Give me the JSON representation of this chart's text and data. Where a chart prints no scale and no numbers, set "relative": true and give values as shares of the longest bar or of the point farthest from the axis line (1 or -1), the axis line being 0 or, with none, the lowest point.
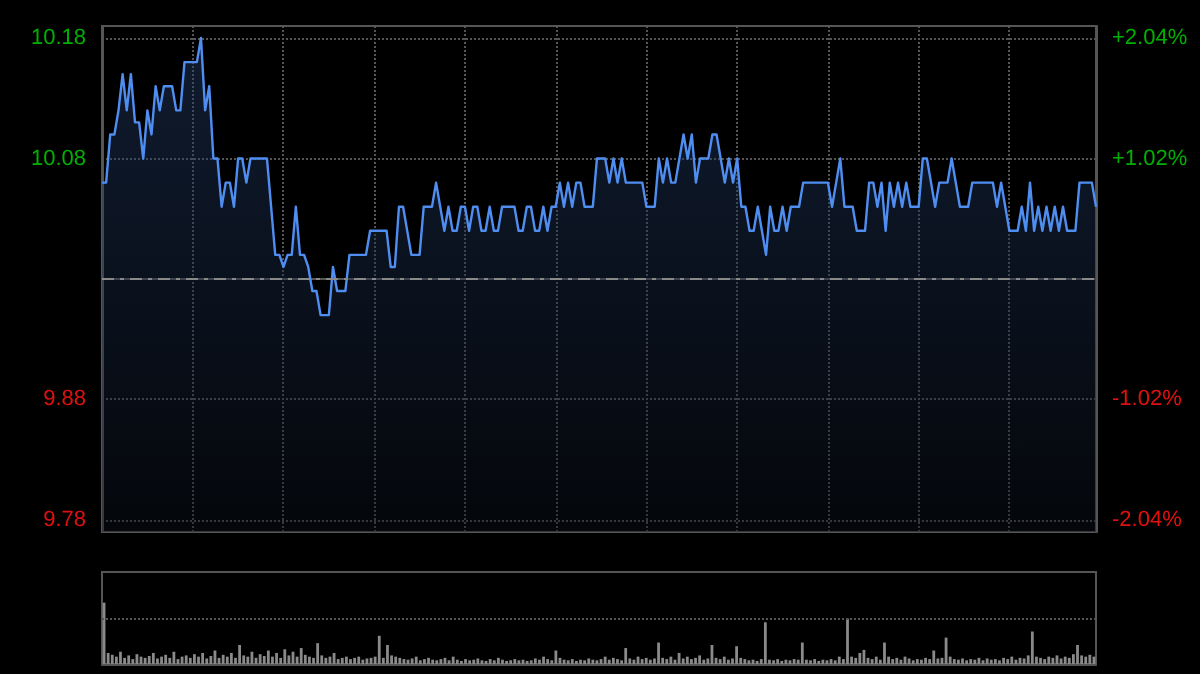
{
  "chart_data": [
    {
      "type": "area",
      "color": "#4f8ef0",
      "categories": [
        null,
        null,
        null,
        null,
        null,
        null,
        null,
        null,
        null,
        null,
        null,
        null,
        null,
        null,
        null,
        null,
        null,
        null,
        null,
        null,
        null,
        null,
        null,
        null,
        null,
        null,
        null,
        null,
        null,
        null,
        null,
        null,
        null,
        null,
        null,
        null,
        null,
        null,
        null,
        null,
        null,
        null,
        null,
        null,
        null,
        null,
        null,
        null,
        null,
        null,
        null,
        null,
        null,
        null,
        null,
        null,
        null,
        null,
        null,
        null,
        null,
        null,
        null,
        null,
        null,
        null,
        null,
        null,
        null,
        null,
        null,
        null,
        null,
        null,
        null,
        null,
        null,
        null,
        null,
        null,
        null,
        null,
        null,
        null,
        null,
        null,
        null,
        null,
        null,
        null,
        null,
        null,
        null,
        null,
        null,
        null,
        null,
        null,
        null,
        null,
        null,
        null,
        null,
        null,
        null,
        null,
        null,
        null,
        null,
        null,
        null,
        null,
        null,
        null,
        null,
        null,
        null,
        null,
        null,
        null,
        null,
        null,
        null,
        null,
        null,
        null,
        null,
        null,
        null,
        null,
        null,
        null,
        null,
        null,
        null,
        null,
        null,
        null,
        null,
        null,
        null,
        null,
        null,
        null,
        null,
        null,
        null,
        null,
        null,
        null,
        null,
        null,
        null,
        null,
        null,
        null,
        null,
        null,
        null,
        null,
        null,
        null,
        null,
        null,
        null,
        null,
        null,
        null,
        null,
        null,
        null,
        null,
        null,
        null,
        null,
        null,
        null,
        null,
        null,
        null,
        null,
        null,
        null,
        null,
        null,
        null,
        null,
        null,
        null,
        null,
        null,
        null,
        null,
        null,
        null,
        null,
        null,
        null,
        null,
        null,
        null,
        null,
        null,
        null,
        null,
        null,
        null,
        null,
        null,
        null,
        null,
        null,
        null,
        null,
        null,
        null,
        null,
        null,
        null,
        null,
        null,
        null,
        null,
        null,
        null,
        null,
        null,
        null,
        null,
        null,
        null,
        null,
        null,
        null,
        null,
        null,
        null,
        null,
        null,
        null,
        null,
        null
      ],
      "values": [
        10.06,
        10.06,
        10.1,
        10.1,
        10.12,
        10.15,
        10.12,
        10.15,
        10.11,
        10.11,
        10.08,
        10.12,
        10.1,
        10.14,
        10.12,
        10.14,
        10.14,
        10.14,
        10.12,
        10.12,
        10.16,
        10.16,
        10.16,
        10.16,
        10.18,
        10.12,
        10.14,
        10.08,
        10.08,
        10.04,
        10.06,
        10.06,
        10.04,
        10.08,
        10.08,
        10.06,
        10.08,
        10.08,
        10.08,
        10.08,
        10.08,
        10.04,
        10.0,
        10.0,
        9.99,
        10.0,
        10.0,
        10.04,
        10.0,
        10.0,
        9.99,
        9.97,
        9.97,
        9.95,
        9.95,
        9.95,
        9.99,
        9.97,
        9.97,
        9.97,
        10.0,
        10.0,
        10.0,
        10.0,
        10.0,
        10.02,
        10.02,
        10.02,
        10.02,
        10.02,
        9.99,
        9.99,
        10.04,
        10.04,
        10.02,
        10.0,
        10.0,
        10.0,
        10.04,
        10.04,
        10.04,
        10.06,
        10.04,
        10.02,
        10.04,
        10.02,
        10.02,
        10.04,
        10.04,
        10.02,
        10.04,
        10.04,
        10.02,
        10.02,
        10.04,
        10.02,
        10.02,
        10.04,
        10.04,
        10.04,
        10.04,
        10.02,
        10.02,
        10.04,
        10.04,
        10.02,
        10.02,
        10.04,
        10.02,
        10.04,
        10.04,
        10.06,
        10.04,
        10.06,
        10.04,
        10.06,
        10.06,
        10.04,
        10.04,
        10.04,
        10.08,
        10.08,
        10.08,
        10.06,
        10.08,
        10.06,
        10.08,
        10.06,
        10.06,
        10.06,
        10.06,
        10.06,
        10.04,
        10.04,
        10.04,
        10.08,
        10.06,
        10.08,
        10.06,
        10.06,
        10.08,
        10.1,
        10.08,
        10.1,
        10.06,
        10.08,
        10.08,
        10.08,
        10.1,
        10.1,
        10.08,
        10.06,
        10.08,
        10.06,
        10.08,
        10.04,
        10.04,
        10.02,
        10.02,
        10.04,
        10.02,
        10.0,
        10.04,
        10.02,
        10.02,
        10.04,
        10.02,
        10.04,
        10.04,
        10.04,
        10.06,
        10.06,
        10.06,
        10.06,
        10.06,
        10.06,
        10.06,
        10.04,
        10.06,
        10.08,
        10.04,
        10.04,
        10.04,
        10.02,
        10.02,
        10.02,
        10.06,
        10.06,
        10.04,
        10.06,
        10.02,
        10.06,
        10.04,
        10.06,
        10.04,
        10.06,
        10.04,
        10.04,
        10.04,
        10.08,
        10.08,
        10.06,
        10.04,
        10.06,
        10.06,
        10.06,
        10.08,
        10.06,
        10.04,
        10.04,
        10.04,
        10.06,
        10.06,
        10.06,
        10.06,
        10.06,
        10.06,
        10.04,
        10.06,
        10.04,
        10.02,
        10.02,
        10.02,
        10.04,
        10.02,
        10.06,
        10.02,
        10.04,
        10.02,
        10.04,
        10.02,
        10.04,
        10.02,
        10.04,
        10.02,
        10.02,
        10.02,
        10.06,
        10.06,
        10.06,
        10.06,
        10.04
      ],
      "ylim": [
        9.77,
        10.19
      ],
      "yticks": [
        9.78,
        9.88,
        10.08,
        10.18
      ],
      "y2lim": [
        -2.142,
        2.142
      ],
      "y2ticks": [
        {
          "value": -2.04,
          "label": "-2.04%"
        },
        {
          "value": -1.02,
          "label": "-1.02%"
        },
        {
          "value": 1.02,
          "label": "+1.02%"
        },
        {
          "value": 2.04,
          "label": "+2.04%"
        }
      ],
      "ref_lines": [
        {
          "axis": "y",
          "value": 9.98,
          "color": "#8a8a8a",
          "line_style": "dashed"
        }
      ],
      "grid": true,
      "tick_labels": "y"
    },
    {
      "type": "bar",
      "relative": true,
      "color": "#8a8a8a",
      "tick_labels": false,
      "ref_lines": [
        {
          "axis": "y",
          "value": 0.74,
          "color": "#555555",
          "line_style": "dotted"
        }
      ],
      "categories": [
        null,
        null,
        null,
        null,
        null,
        null,
        null,
        null,
        null,
        null,
        null,
        null,
        null,
        null,
        null,
        null,
        null,
        null,
        null,
        null,
        null,
        null,
        null,
        null,
        null,
        null,
        null,
        null,
        null,
        null,
        null,
        null,
        null,
        null,
        null,
        null,
        null,
        null,
        null,
        null,
        null,
        null,
        null,
        null,
        null,
        null,
        null,
        null,
        null,
        null,
        null,
        null,
        null,
        null,
        null,
        null,
        null,
        null,
        null,
        null,
        null,
        null,
        null,
        null,
        null,
        null,
        null,
        null,
        null,
        null,
        null,
        null,
        null,
        null,
        null,
        null,
        null,
        null,
        null,
        null,
        null,
        null,
        null,
        null,
        null,
        null,
        null,
        null,
        null,
        null,
        null,
        null,
        null,
        null,
        null,
        null,
        null,
        null,
        null,
        null,
        null,
        null,
        null,
        null,
        null,
        null,
        null,
        null,
        null,
        null,
        null,
        null,
        null,
        null,
        null,
        null,
        null,
        null,
        null,
        null,
        null,
        null,
        null,
        null,
        null,
        null,
        null,
        null,
        null,
        null,
        null,
        null,
        null,
        null,
        null,
        null,
        null,
        null,
        null,
        null,
        null,
        null,
        null,
        null,
        null,
        null,
        null,
        null,
        null,
        null,
        null,
        null,
        null,
        null,
        null,
        null,
        null,
        null,
        null,
        null,
        null,
        null,
        null,
        null,
        null,
        null,
        null,
        null,
        null,
        null,
        null,
        null,
        null,
        null,
        null,
        null,
        null,
        null,
        null,
        null,
        null,
        null,
        null,
        null,
        null,
        null,
        null,
        null,
        null,
        null,
        null,
        null,
        null,
        null,
        null,
        null,
        null,
        null,
        null,
        null,
        null,
        null,
        null,
        null,
        null,
        null,
        null,
        null,
        null,
        null,
        null,
        null,
        null,
        null,
        null,
        null,
        null,
        null,
        null,
        null,
        null,
        null,
        null,
        null,
        null,
        null,
        null,
        null,
        null,
        null,
        null,
        null,
        null,
        null,
        null,
        null,
        null,
        null,
        null,
        null,
        null,
        null
      ],
      "values": [
        1.0,
        0.18,
        0.15,
        0.12,
        0.2,
        0.1,
        0.14,
        0.08,
        0.16,
        0.12,
        0.1,
        0.13,
        0.18,
        0.09,
        0.12,
        0.15,
        0.1,
        0.2,
        0.08,
        0.12,
        0.14,
        0.1,
        0.16,
        0.12,
        0.18,
        0.09,
        0.13,
        0.22,
        0.1,
        0.15,
        0.12,
        0.18,
        0.1,
        0.31,
        0.14,
        0.12,
        0.2,
        0.1,
        0.16,
        0.13,
        0.22,
        0.12,
        0.18,
        0.1,
        0.24,
        0.14,
        0.2,
        0.12,
        0.26,
        0.15,
        0.12,
        0.1,
        0.34,
        0.14,
        0.1,
        0.12,
        0.18,
        0.08,
        0.1,
        0.12,
        0.08,
        0.1,
        0.12,
        0.07,
        0.09,
        0.1,
        0.12,
        0.46,
        0.1,
        0.31,
        0.14,
        0.12,
        0.1,
        0.08,
        0.07,
        0.09,
        0.12,
        0.06,
        0.08,
        0.1,
        0.07,
        0.06,
        0.08,
        0.1,
        0.06,
        0.12,
        0.07,
        0.05,
        0.08,
        0.06,
        0.07,
        0.09,
        0.06,
        0.05,
        0.08,
        0.06,
        0.1,
        0.07,
        0.05,
        0.06,
        0.08,
        0.06,
        0.07,
        0.05,
        0.06,
        0.09,
        0.07,
        0.12,
        0.08,
        0.06,
        0.22,
        0.1,
        0.07,
        0.06,
        0.08,
        0.05,
        0.07,
        0.06,
        0.09,
        0.07,
        0.06,
        0.08,
        0.12,
        0.07,
        0.1,
        0.08,
        0.06,
        0.26,
        0.09,
        0.07,
        0.12,
        0.08,
        0.1,
        0.07,
        0.09,
        0.35,
        0.1,
        0.08,
        0.12,
        0.07,
        0.18,
        0.09,
        0.12,
        0.08,
        0.1,
        0.14,
        0.07,
        0.09,
        0.31,
        0.1,
        0.08,
        0.12,
        0.07,
        0.09,
        0.29,
        0.1,
        0.08,
        0.06,
        0.07,
        0.05,
        0.08,
        0.68,
        0.07,
        0.06,
        0.08,
        0.05,
        0.07,
        0.06,
        0.08,
        0.07,
        0.35,
        0.07,
        0.06,
        0.08,
        0.05,
        0.07,
        0.06,
        0.08,
        0.06,
        0.12,
        0.08,
        0.74,
        0.12,
        0.1,
        0.18,
        0.23,
        0.1,
        0.08,
        0.12,
        0.07,
        0.35,
        0.12,
        0.08,
        0.1,
        0.07,
        0.12,
        0.09,
        0.06,
        0.08,
        0.07,
        0.1,
        0.08,
        0.22,
        0.09,
        0.1,
        0.43,
        0.12,
        0.08,
        0.07,
        0.09,
        0.06,
        0.08,
        0.07,
        0.1,
        0.06,
        0.09,
        0.07,
        0.08,
        0.06,
        0.1,
        0.08,
        0.12,
        0.07,
        0.1,
        0.09,
        0.14,
        0.53,
        0.12,
        0.1,
        0.08,
        0.12,
        0.1,
        0.14,
        0.09,
        0.12,
        0.1,
        0.16,
        0.31,
        0.14,
        0.12,
        0.15,
        0.12
      ]
    }
  ]
}
